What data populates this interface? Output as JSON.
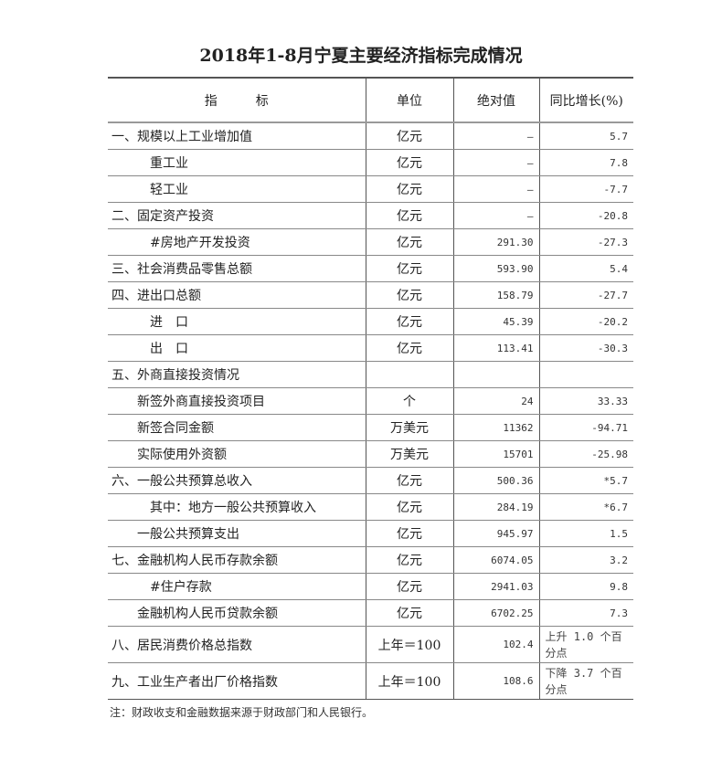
{
  "title": "2018年1-8月宁夏主要经济指标完成情况",
  "headers": [
    "指　　　标",
    "单位",
    "绝对值",
    "同比增长(%)"
  ],
  "rows": [
    {
      "name": "一、规模以上工业增加值",
      "indent": 0,
      "unit": "亿元",
      "value": "—",
      "growth": "5.7"
    },
    {
      "name": "重工业",
      "indent": 3,
      "unit": "亿元",
      "value": "—",
      "growth": "7.8"
    },
    {
      "name": "轻工业",
      "indent": 3,
      "unit": "亿元",
      "value": "—",
      "growth": "-7.7"
    },
    {
      "name": "二、固定资产投资",
      "indent": 0,
      "unit": "亿元",
      "value": "—",
      "growth": "-20.8"
    },
    {
      "name": "#房地产开发投资",
      "indent": 3,
      "unit": "亿元",
      "value": "291.30",
      "growth": "-27.3"
    },
    {
      "name": "三、社会消费品零售总额",
      "indent": 0,
      "unit": "亿元",
      "value": "593.90",
      "growth": "5.4"
    },
    {
      "name": "四、进出口总额",
      "indent": 0,
      "unit": "亿元",
      "value": "158.79",
      "growth": "-27.7"
    },
    {
      "name": "进　口",
      "indent": 3,
      "unit": "亿元",
      "value": "45.39",
      "growth": "-20.2"
    },
    {
      "name": "出　口",
      "indent": 3,
      "unit": "亿元",
      "value": "113.41",
      "growth": "-30.3"
    },
    {
      "name": "五、外商直接投资情况",
      "indent": 0,
      "unit": "",
      "value": "",
      "growth": ""
    },
    {
      "name": "新签外商直接投资项目",
      "indent": 2,
      "unit": "个",
      "value": "24",
      "growth": "33.33"
    },
    {
      "name": "新签合同金额",
      "indent": 2,
      "unit": "万美元",
      "value": "11362",
      "growth": "-94.71"
    },
    {
      "name": "实际使用外资额",
      "indent": 2,
      "unit": "万美元",
      "value": "15701",
      "growth": "-25.98"
    },
    {
      "name": "六、一般公共预算总收入",
      "indent": 0,
      "unit": "亿元",
      "value": "500.36",
      "growth": "*5.7"
    },
    {
      "name": "其中：地方一般公共预算收入",
      "indent": 3,
      "unit": "亿元",
      "value": "284.19",
      "growth": "*6.7"
    },
    {
      "name": "一般公共预算支出",
      "indent": 2,
      "unit": "亿元",
      "value": "945.97",
      "growth": "1.5"
    },
    {
      "name": "七、金融机构人民币存款余额",
      "indent": 0,
      "unit": "亿元",
      "value": "6074.05",
      "growth": "3.2"
    },
    {
      "name": "#住户存款",
      "indent": 3,
      "unit": "亿元",
      "value": "2941.03",
      "growth": "9.8"
    },
    {
      "name": "金融机构人民币贷款余额",
      "indent": 2,
      "unit": "亿元",
      "value": "6702.25",
      "growth": "7.3"
    },
    {
      "name": "八、居民消费价格总指数",
      "indent": 0,
      "unit": "上年＝100",
      "value": "102.4",
      "growth": "上升 1.0 个百分点",
      "tall": true
    },
    {
      "name": "九、工业生产者出厂价格指数",
      "indent": 0,
      "unit": "上年＝100",
      "value": "108.6",
      "growth": "下降 3.7 个百分点",
      "tall": true
    }
  ],
  "note": "注：财政收支和金融数据来源于财政部门和人民银行。"
}
